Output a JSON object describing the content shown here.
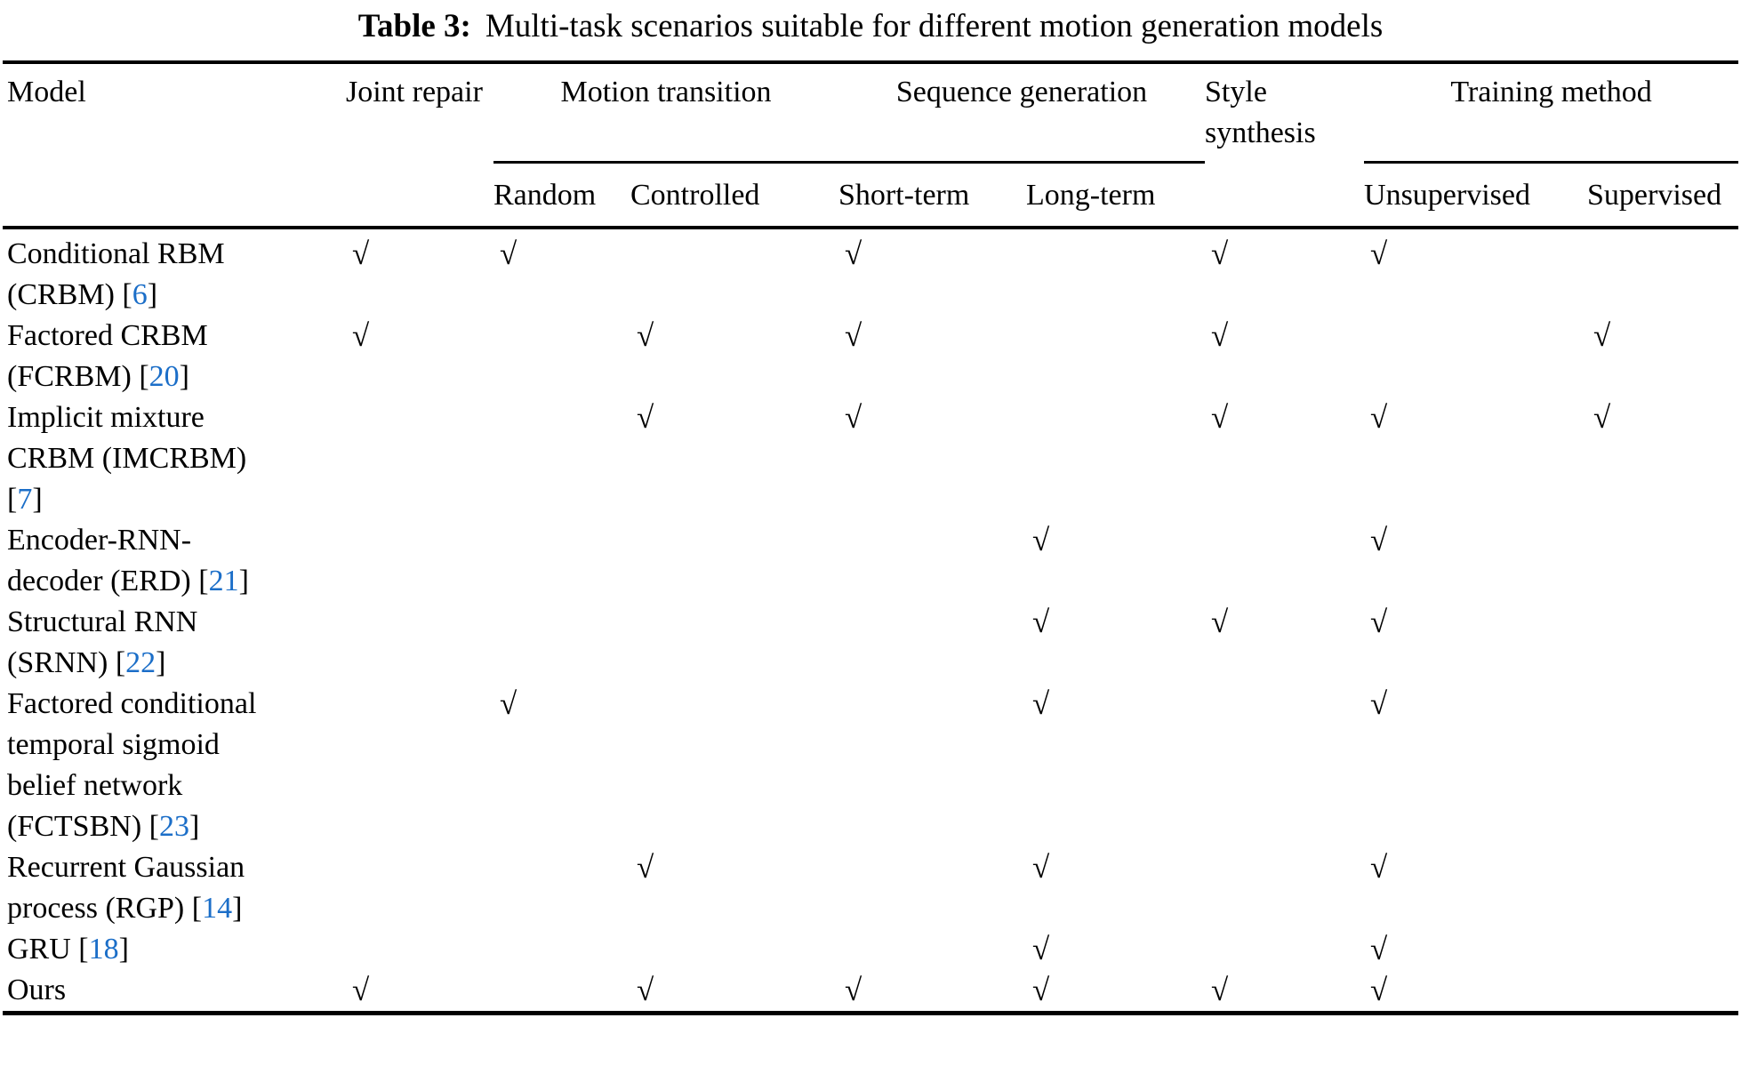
{
  "caption": {
    "label": "Table 3:",
    "text": "Multi-task scenarios suitable for different motion generation models"
  },
  "header": {
    "model": "Model",
    "joint_repair": "Joint repair",
    "motion_transition": "Motion transition",
    "sequence_generation": "Sequence generation",
    "style_synthesis": "Style synthesis",
    "training_method": "Training method",
    "sub": {
      "random": "Random",
      "controlled": "Controlled",
      "short_term": "Short-term",
      "long_term": "Long-term",
      "unsupervised": "Unsupervised",
      "supervised": "Supervised"
    }
  },
  "check_glyph": "√",
  "colors": {
    "cite_blue": "#1b6ec8",
    "text": "#000000",
    "background": "#ffffff"
  },
  "columns_order": [
    "joint_repair",
    "random",
    "controlled",
    "short_term",
    "long_term",
    "style_synthesis",
    "unsupervised",
    "supervised"
  ],
  "rows": [
    {
      "name": "Conditional RBM (CRBM)",
      "cite": "6",
      "checks": {
        "joint_repair": 1,
        "random": 1,
        "controlled": 0,
        "short_term": 1,
        "long_term": 0,
        "style_synthesis": 1,
        "unsupervised": 1,
        "supervised": 0
      }
    },
    {
      "name": "Factored CRBM (FCRBM)",
      "cite": "20",
      "checks": {
        "joint_repair": 1,
        "random": 0,
        "controlled": 1,
        "short_term": 1,
        "long_term": 0,
        "style_synthesis": 1,
        "unsupervised": 0,
        "supervised": 1
      }
    },
    {
      "name": "Implicit mixture CRBM (IMCRBM)",
      "cite": "7",
      "checks": {
        "joint_repair": 0,
        "random": 0,
        "controlled": 1,
        "short_term": 1,
        "long_term": 0,
        "style_synthesis": 1,
        "unsupervised": 1,
        "supervised": 1
      }
    },
    {
      "name": "Encoder-RNN-decoder (ERD)",
      "cite": "21",
      "checks": {
        "joint_repair": 0,
        "random": 0,
        "controlled": 0,
        "short_term": 0,
        "long_term": 1,
        "style_synthesis": 0,
        "unsupervised": 1,
        "supervised": 0
      }
    },
    {
      "name": "Structural RNN (SRNN)",
      "cite": "22",
      "checks": {
        "joint_repair": 0,
        "random": 0,
        "controlled": 0,
        "short_term": 0,
        "long_term": 1,
        "style_synthesis": 1,
        "unsupervised": 1,
        "supervised": 0
      }
    },
    {
      "name": "Factored conditional temporal sigmoid belief network (FCTSBN)",
      "cite": "23",
      "checks": {
        "joint_repair": 0,
        "random": 1,
        "controlled": 0,
        "short_term": 0,
        "long_term": 1,
        "style_synthesis": 0,
        "unsupervised": 1,
        "supervised": 0
      }
    },
    {
      "name": "Recurrent Gaussian process (RGP)",
      "cite": "14",
      "checks": {
        "joint_repair": 0,
        "random": 0,
        "controlled": 1,
        "short_term": 0,
        "long_term": 1,
        "style_synthesis": 0,
        "unsupervised": 1,
        "supervised": 0
      }
    },
    {
      "name": "GRU",
      "cite": "18",
      "checks": {
        "joint_repair": 0,
        "random": 0,
        "controlled": 0,
        "short_term": 0,
        "long_term": 1,
        "style_synthesis": 0,
        "unsupervised": 1,
        "supervised": 0
      }
    },
    {
      "name": "Ours",
      "cite": null,
      "checks": {
        "joint_repair": 1,
        "random": 0,
        "controlled": 1,
        "short_term": 1,
        "long_term": 1,
        "style_synthesis": 1,
        "unsupervised": 1,
        "supervised": 0
      }
    }
  ]
}
